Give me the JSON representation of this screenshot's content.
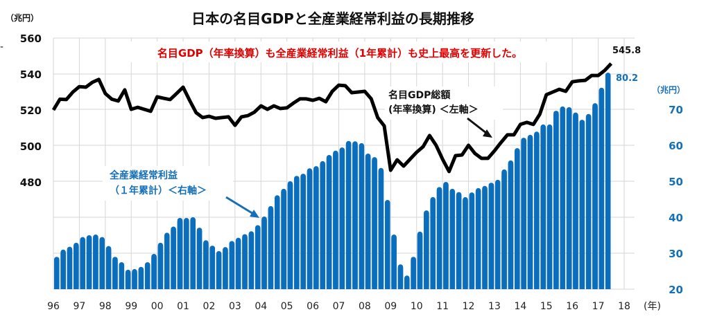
{
  "chart_data": {
    "type": "bar+line",
    "title": "日本の名目GDPと全産業経常利益の長期推移",
    "subtitle": "名目GDP（年率換算）も全産業経常利益（1年累計）も史上最高を更新した。",
    "x_start_year": 1996,
    "frequency": "quarterly",
    "xlabel": "(年)",
    "x_tick_labels": [
      "96",
      "97",
      "98",
      "99",
      "00",
      "01",
      "02",
      "03",
      "04",
      "05",
      "06",
      "07",
      "08",
      "09",
      "10",
      "11",
      "12",
      "13",
      "14",
      "15",
      "16",
      "17",
      "18"
    ],
    "left_axis": {
      "unit_label": "（兆円）",
      "ylim": [
        460,
        560
      ],
      "tick_labels": [
        "560",
        "540",
        "520",
        "500",
        "480"
      ],
      "ticks": [
        560,
        540,
        520,
        500,
        480
      ]
    },
    "right_axis": {
      "unit_label": "（兆円）",
      "ylim": [
        20,
        90
      ],
      "tick_labels": [
        "70",
        "60",
        "50",
        "40",
        "30",
        "20"
      ],
      "ticks": [
        70,
        60,
        50,
        40,
        30,
        20
      ]
    },
    "grid": true,
    "series": [
      {
        "name": "全産業経常利益（1年累計）",
        "type": "bar",
        "axis": "right",
        "color": "#0a6ebd",
        "values": [
          29.0,
          31.0,
          31.8,
          32.9,
          34.5,
          35.0,
          35.2,
          34.5,
          32.0,
          29.0,
          27.5,
          25.4,
          25.6,
          26.2,
          27.5,
          29.8,
          32.9,
          35.7,
          37.4,
          39.8,
          39.8,
          40.0,
          37.1,
          33.6,
          32.1,
          30.6,
          31.7,
          33.4,
          34.3,
          35.3,
          36.1,
          37.8,
          40.2,
          43.1,
          46.1,
          47.9,
          50.0,
          51.5,
          52.1,
          53.6,
          54.2,
          55.6,
          57.3,
          58.5,
          59.4,
          61.2,
          61.1,
          60.6,
          57.7,
          56.7,
          53.7,
          44.8,
          35.2,
          26.9,
          23.8,
          29.0,
          36.0,
          41.9,
          45.6,
          48.4,
          49.8,
          47.9,
          47.0,
          45.6,
          46.9,
          48.1,
          48.7,
          49.6,
          50.4,
          53.3,
          55.8,
          59.2,
          62.1,
          62.9,
          63.8,
          65.8,
          65.8,
          69.6,
          70.8,
          70.6,
          69.1,
          67.1,
          68.7,
          71.7,
          76.0,
          80.2
        ]
      },
      {
        "name": "名目GDP総額（年率換算）",
        "type": "line",
        "axis": "left",
        "color": "#000000",
        "values": [
          520.0,
          526.0,
          525.8,
          530.0,
          533.0,
          532.7,
          535.4,
          537.0,
          529.2,
          526.0,
          525.0,
          531.2,
          520.4,
          521.5,
          520.4,
          519.3,
          527.3,
          526.5,
          525.8,
          529.2,
          532.7,
          525.4,
          518.5,
          515.8,
          516.5,
          515.4,
          515.8,
          516.2,
          511.5,
          516.2,
          516.9,
          518.8,
          522.3,
          520.4,
          522.3,
          520.8,
          521.2,
          523.8,
          526.2,
          526.2,
          525.4,
          526.5,
          524.6,
          530.4,
          533.8,
          533.5,
          529.6,
          530.0,
          530.4,
          526.2,
          515.8,
          511.2,
          486.5,
          492.3,
          488.8,
          492.7,
          496.5,
          499.6,
          505.8,
          500.4,
          492.7,
          485.8,
          494.6,
          495.0,
          500.4,
          495.8,
          493.1,
          493.1,
          497.3,
          501.9,
          506.2,
          506.2,
          512.0,
          513.1,
          512.0,
          517.7,
          528.5,
          530.0,
          531.5,
          530.4,
          535.7,
          536.2,
          536.5,
          539.2,
          539.2,
          542.0,
          545.8
        ]
      }
    ],
    "annotations": {
      "profit_label_line1": "全産業経常利益",
      "profit_label_line2": "（１年累計）＜右軸＞",
      "gdp_label_line1": "名目GDP総額",
      "gdp_label_line2": "(年率換算) ＜左軸＞",
      "gdp_last_value": "545.8",
      "profit_last_value": "80.2"
    }
  }
}
